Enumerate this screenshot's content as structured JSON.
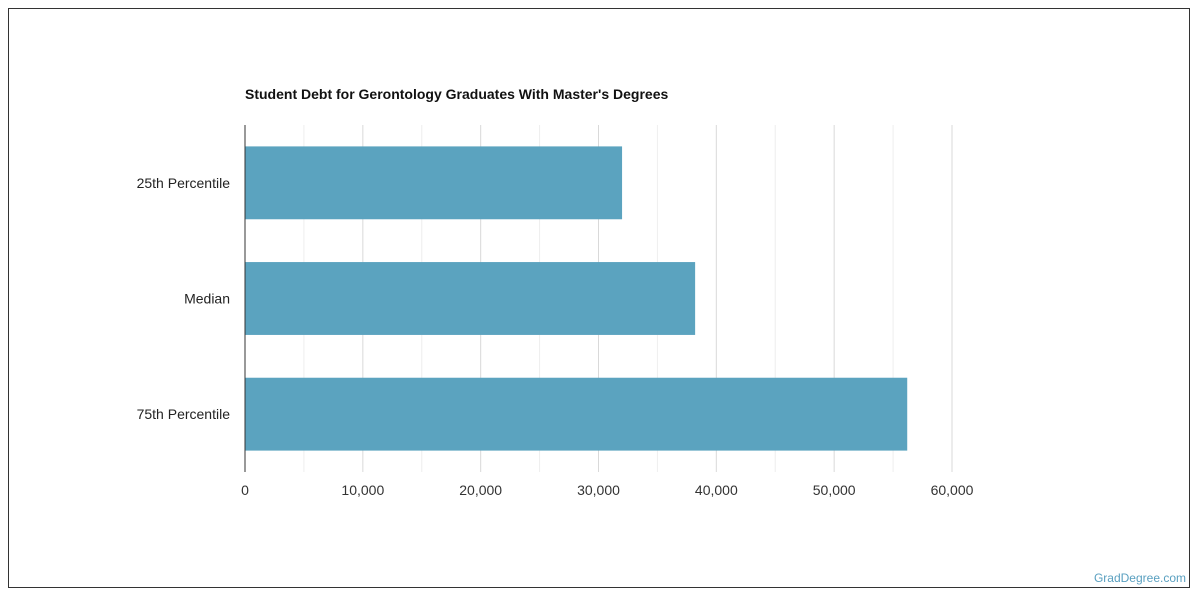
{
  "chart_data": {
    "type": "bar",
    "orientation": "horizontal",
    "title": "Student Debt for Gerontology Graduates With Master's Degrees",
    "categories": [
      "25th Percentile",
      "Median",
      "75th Percentile"
    ],
    "values": [
      32000,
      38200,
      56200
    ],
    "xlim": [
      0,
      60000
    ],
    "xticks": [
      0,
      10000,
      20000,
      30000,
      40000,
      50000,
      60000
    ],
    "xtick_labels": [
      "0",
      "10,000",
      "20,000",
      "30,000",
      "40,000",
      "50,000",
      "60,000"
    ],
    "xlabel": "",
    "ylabel": "",
    "grid": true,
    "bar_color": "#5ba3bf",
    "grid_color": "#d9d9d9"
  },
  "footer": {
    "watermark": "GradDegree.com"
  }
}
